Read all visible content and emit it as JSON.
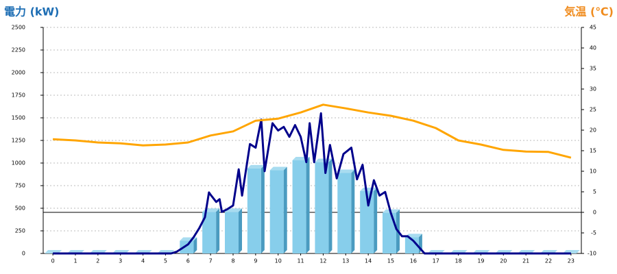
{
  "chart_data": {
    "type": "bar",
    "title": "電力 (kW)",
    "y2_title": "気温 (℃)",
    "x": [
      0,
      1,
      2,
      3,
      4,
      5,
      6,
      7,
      8,
      9,
      10,
      11,
      12,
      13,
      14,
      15,
      16,
      17,
      18,
      19,
      20,
      21,
      22,
      23
    ],
    "xticks": [
      0,
      1,
      2,
      3,
      4,
      5,
      6,
      7,
      8,
      9,
      10,
      11,
      12,
      13,
      14,
      15,
      16,
      17,
      18,
      19,
      20,
      21,
      22,
      23
    ],
    "xlim": [
      -0.43,
      23.46
    ],
    "ylim": [
      0,
      2500
    ],
    "yticks": [
      0,
      250,
      500,
      750,
      1000,
      1250,
      1500,
      1750,
      2000,
      2250,
      2500
    ],
    "y2lim": [
      -10,
      45
    ],
    "y2ticks": [
      -10,
      -5,
      0,
      5,
      10,
      15,
      20,
      25,
      30,
      35,
      40,
      45
    ],
    "grid": true,
    "series": [
      {
        "type": "bar",
        "color": "#87ceeb",
        "values": [
          0,
          0,
          0,
          0,
          0,
          0,
          140,
          460,
          460,
          940,
          920,
          1030,
          1010,
          890,
          690,
          450,
          180,
          0,
          0,
          0,
          0,
          0,
          0,
          0
        ]
      },
      {
        "type": "line",
        "color": "#00008b",
        "x": [
          0,
          5,
          5.25,
          5.5,
          5.75,
          6,
          6.25,
          6.5,
          6.75,
          6.93,
          7,
          7.25,
          7.4,
          7.5,
          7.75,
          8,
          8.25,
          8.4,
          8.75,
          9,
          9.25,
          9.4,
          9.75,
          10,
          10.25,
          10.5,
          10.75,
          11,
          11.25,
          11.4,
          11.6,
          11.9,
          12.1,
          12.3,
          12.6,
          12.9,
          13.25,
          13.5,
          13.75,
          14,
          14.25,
          14.5,
          14.75,
          15,
          15.25,
          15.5,
          15.75,
          16,
          16.25,
          16.5,
          17,
          23
        ],
        "values": [
          0,
          0,
          0,
          20,
          60,
          100,
          180,
          280,
          400,
          675,
          650,
          570,
          600,
          460,
          490,
          530,
          930,
          640,
          1210,
          1170,
          1480,
          910,
          1440,
          1360,
          1400,
          1290,
          1420,
          1290,
          1010,
          1440,
          1010,
          1550,
          890,
          1200,
          830,
          1100,
          1170,
          820,
          980,
          530,
          810,
          640,
          680,
          450,
          270,
          190,
          190,
          140,
          70,
          0,
          0,
          0
        ]
      },
      {
        "type": "line",
        "axis": "y2",
        "color": "#ffa500",
        "values": [
          17.8,
          17.5,
          17,
          16.8,
          16.3,
          16.5,
          17,
          18.7,
          19.7,
          22.3,
          22.8,
          24.3,
          26.2,
          25.3,
          24.3,
          23.5,
          22.3,
          20.5,
          17.5,
          16.5,
          15.2,
          14.8,
          14.7,
          13.3
        ]
      }
    ]
  }
}
